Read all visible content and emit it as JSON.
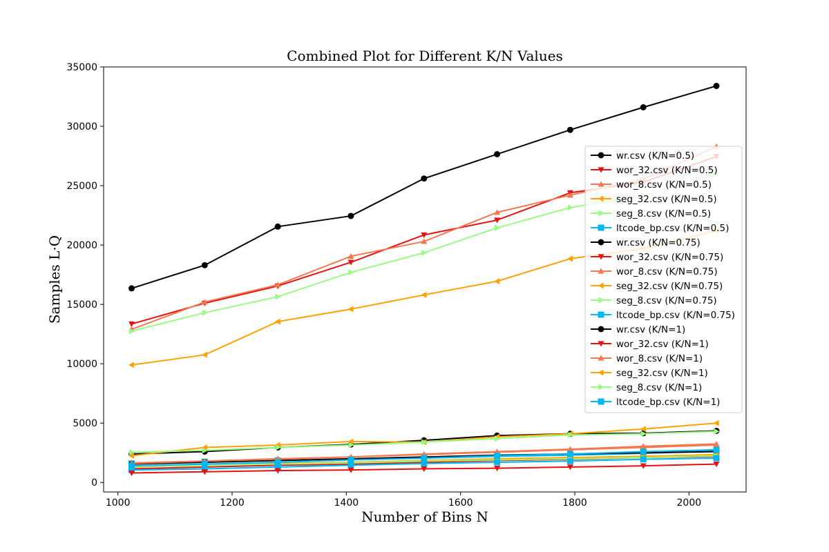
{
  "chart_data": {
    "type": "line",
    "title": "Combined Plot for Different K/N Values",
    "xlabel": "Number of Bins N",
    "ylabel": "Samples L·Q",
    "xlim": [
      975,
      2100
    ],
    "ylim": [
      -800,
      35000
    ],
    "x_ticks": [
      1000,
      1200,
      1400,
      1600,
      1800,
      2000
    ],
    "y_ticks": [
      0,
      5000,
      10000,
      15000,
      20000,
      25000,
      30000,
      35000
    ],
    "grid": false,
    "legend_position": "right",
    "x": [
      1024,
      1152,
      1280,
      1408,
      1536,
      1664,
      1792,
      1920,
      2048
    ],
    "series": [
      {
        "name": "wr.csv (K/N=0.5)",
        "color": "#000000",
        "marker": "circle",
        "values": [
          16350,
          18300,
          21550,
          22450,
          25600,
          27650,
          29700,
          31600,
          33400
        ]
      },
      {
        "name": "wor_32.csv (K/N=0.5)",
        "color": "#e8110f",
        "marker": "triangle-down",
        "values": [
          13350,
          15100,
          16550,
          18550,
          20850,
          22100,
          24400,
          25300,
          27450
        ]
      },
      {
        "name": "wor_8.csv (K/N=0.5)",
        "color": "#f4774f",
        "marker": "triangle-up",
        "values": [
          12900,
          15200,
          16650,
          19050,
          20300,
          22750,
          24200,
          25550,
          28300
        ]
      },
      {
        "name": "seg_32.csv (K/N=0.5)",
        "color": "#ffa100",
        "marker": "triangle-left",
        "values": [
          9900,
          10750,
          13550,
          14600,
          15800,
          16950,
          18850,
          19700,
          21200
        ]
      },
      {
        "name": "seg_8.csv (K/N=0.5)",
        "color": "#98fb82",
        "marker": "triangle-right",
        "values": [
          12750,
          14300,
          15650,
          17700,
          19350,
          21450,
          23150,
          24150,
          26050
        ]
      },
      {
        "name": "ltcode_bp.csv (K/N=0.5)",
        "color": "#00b6f1",
        "marker": "square",
        "values": [
          1600,
          1750,
          1850,
          1950,
          2050,
          2200,
          2300,
          2450,
          2650
        ]
      },
      {
        "name": "wr.csv (K/N=0.75)",
        "color": "#000000",
        "marker": "circle",
        "values": [
          1550,
          1700,
          1850,
          2000,
          2150,
          2300,
          2400,
          2500,
          2600
        ]
      },
      {
        "name": "wor_32.csv (K/N=0.75)",
        "color": "#e8110f",
        "marker": "triangle-down",
        "values": [
          1150,
          1300,
          1450,
          1550,
          1700,
          1850,
          1950,
          2100,
          2200
        ]
      },
      {
        "name": "wor_8.csv (K/N=0.75)",
        "color": "#f4774f",
        "marker": "triangle-up",
        "values": [
          1600,
          1800,
          2000,
          2150,
          2350,
          2550,
          2750,
          2950,
          3150
        ]
      },
      {
        "name": "seg_32.csv (K/N=0.75)",
        "color": "#ffa100",
        "marker": "triangle-left",
        "values": [
          1300,
          1450,
          1600,
          1700,
          1850,
          2000,
          2100,
          2200,
          2350
        ]
      },
      {
        "name": "seg_8.csv (K/N=0.75)",
        "color": "#98fb82",
        "marker": "triangle-right",
        "values": [
          1350,
          1450,
          1550,
          1650,
          1800,
          1900,
          2000,
          2100,
          2250
        ]
      },
      {
        "name": "ltcode_bp.csv (K/N=0.75)",
        "color": "#00b6f1",
        "marker": "square",
        "values": [
          1050,
          1150,
          1300,
          1450,
          1600,
          1700,
          1800,
          1950,
          2050
        ]
      },
      {
        "name": "wr.csv (K/N=1)",
        "color": "#000000",
        "marker": "circle",
        "values": [
          2400,
          2600,
          2950,
          3200,
          3550,
          3950,
          4100,
          4150,
          4350
        ]
      },
      {
        "name": "wor_32.csv (K/N=1)",
        "color": "#e8110f",
        "marker": "triangle-down",
        "values": [
          800,
          900,
          1000,
          1050,
          1150,
          1200,
          1300,
          1400,
          1550
        ]
      },
      {
        "name": "wor_8.csv (K/N=1)",
        "color": "#f4774f",
        "marker": "triangle-up",
        "values": [
          1650,
          1800,
          1950,
          2150,
          2400,
          2600,
          2800,
          3050,
          3250
        ]
      },
      {
        "name": "seg_32.csv (K/N=1)",
        "color": "#ffa100",
        "marker": "triangle-left",
        "values": [
          2250,
          2950,
          3150,
          3450,
          3400,
          3850,
          4100,
          4500,
          5000
        ]
      },
      {
        "name": "seg_8.csv (K/N=1)",
        "color": "#98fb82",
        "marker": "triangle-right",
        "values": [
          2550,
          2700,
          2950,
          3150,
          3400,
          3700,
          4000,
          4100,
          4300
        ]
      },
      {
        "name": "ltcode_bp.csv (K/N=1)",
        "color": "#00b6f1",
        "marker": "square",
        "values": [
          1400,
          1550,
          1700,
          1900,
          2050,
          2250,
          2400,
          2600,
          2750
        ]
      }
    ]
  }
}
